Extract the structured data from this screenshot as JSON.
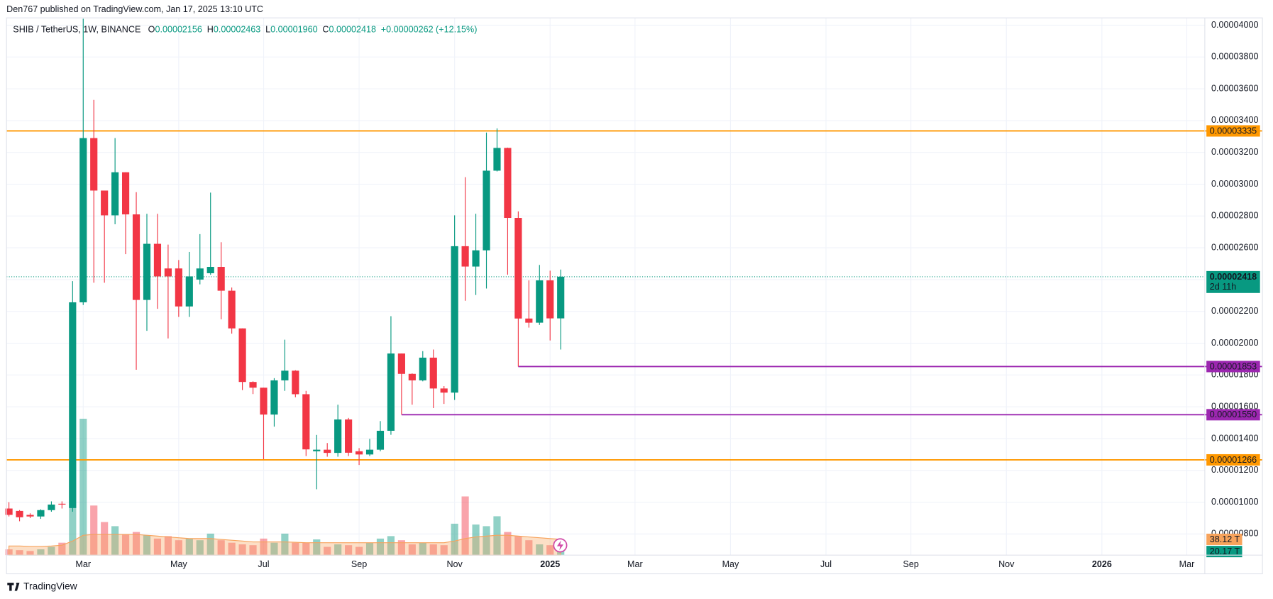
{
  "header": {
    "publisher": "Den767 published on TradingView.com, Jan 17, 2025 13:10 UTC",
    "brand": "TradingView"
  },
  "chart_data": {
    "type": "candlestick",
    "symbol": "SHIB / TetherUS, 1W, BINANCE",
    "legend": [
      {
        "key": "O",
        "value": "0.00002156"
      },
      {
        "key": "H",
        "value": "0.00002463"
      },
      {
        "key": "L",
        "value": "0.00001960"
      },
      {
        "key": "C",
        "value": "0.00002418"
      }
    ],
    "change": "+0.00000262 (+12.15%)",
    "up_color": "#089981",
    "down_color": "#f23645",
    "open": [
      9.6e-06,
      9.45e-06,
      9.2e-06,
      9.1e-06,
      9.5e-06,
      9.9e-06,
      9.63e-06,
      2.257e-05,
      3.29e-05,
      2.96e-05,
      2.804e-05,
      3.075e-05,
      2.81e-05,
      2.272e-05,
      2.625e-05,
      2.47e-05,
      2.47e-05,
      2.231e-05,
      2.4e-05,
      2.44e-05,
      2.48e-05,
      2.33e-05,
      2.093e-05,
      1.756e-05,
      1.72e-05,
      1.551e-05,
      1.766e-05,
      1.827e-05,
      1.679e-05,
      1.32e-05,
      1.33e-05,
      1.31e-05,
      1.52e-05,
      1.32e-05,
      1.3e-05,
      1.33e-05,
      1.449e-05,
      1.935e-05,
      1.807e-05,
      1.766e-05,
      1.909e-05,
      1.715e-05,
      1.689e-05,
      2.61e-05,
      2.482e-05,
      2.584e-05,
      3.085e-05,
      3.228e-05,
      2.788e-05,
      2.155e-05,
      2.129e-05,
      2.395e-05,
      2.156e-05
    ],
    "high": [
      1e-05,
      9.5e-06,
      9.3e-06,
      9.55e-06,
      1.005e-05,
      1.005e-05,
      2.39e-05,
      4.04e-05,
      3.53e-05,
      2.96e-05,
      3.29e-05,
      3.075e-05,
      2.95e-05,
      2.814e-05,
      2.814e-05,
      2.62e-05,
      2.523e-05,
      2.574e-05,
      2.686e-05,
      2.947e-05,
      2.635e-05,
      2.35e-05,
      2.093e-05,
      1.76e-05,
      1.72e-05,
      1.78e-05,
      2.022e-05,
      1.83e-05,
      1.7e-05,
      1.423e-05,
      1.372e-05,
      1.613e-05,
      1.53e-05,
      1.34e-05,
      1.398e-05,
      1.51e-05,
      2.17e-05,
      1.935e-05,
      1.81e-05,
      1.95e-05,
      1.96e-05,
      1.73e-05,
      2.804e-05,
      3.044e-05,
      2.814e-05,
      3.325e-05,
      3.351e-05,
      3.23e-05,
      2.829e-05,
      2.395e-05,
      2.492e-05,
      2.456e-05,
      2.463e-05
    ],
    "low": [
      9.1e-06,
      8.8e-06,
      9e-06,
      8.95e-06,
      9.4e-06,
      9.6e-06,
      9.4e-06,
      2.24e-05,
      2.38e-05,
      2.38e-05,
      2.748e-05,
      2.56e-05,
      1.833e-05,
      2.078e-05,
      2.216e-05,
      2.03e-05,
      2.165e-05,
      2.165e-05,
      2.37e-05,
      2.43e-05,
      2.15e-05,
      2.06e-05,
      1.705e-05,
      1.68e-05,
      1.27e-05,
      1.475e-05,
      1.7e-05,
      1.66e-05,
      1.29e-05,
      1.081e-05,
      1.286e-05,
      1.286e-05,
      1.29e-05,
      1.234e-05,
      1.29e-05,
      1.32e-05,
      1.424e-05,
      1.551e-05,
      1.613e-05,
      1.76e-05,
      1.592e-05,
      1.618e-05,
      1.643e-05,
      2.267e-05,
      2.303e-05,
      2.344e-05,
      3.08e-05,
      2.431e-05,
      1.853e-05,
      2.098e-05,
      2.115e-05,
      2.017e-05,
      1.96e-05
    ],
    "close": [
      9.2e-06,
      9.05e-06,
      9.1e-06,
      9.5e-06,
      9.85e-06,
      9.85e-06,
      2.257e-05,
      3.29e-05,
      2.96e-05,
      2.804e-05,
      3.075e-05,
      2.81e-05,
      2.272e-05,
      2.625e-05,
      2.42e-05,
      2.42e-05,
      2.231e-05,
      2.42e-05,
      2.47e-05,
      2.48e-05,
      2.33e-05,
      2.093e-05,
      1.756e-05,
      1.72e-05,
      1.551e-05,
      1.766e-05,
      1.827e-05,
      1.679e-05,
      1.332e-05,
      1.33e-05,
      1.31e-05,
      1.52e-05,
      1.311e-05,
      1.3e-05,
      1.33e-05,
      1.449e-05,
      1.935e-05,
      1.807e-05,
      1.766e-05,
      1.909e-05,
      1.715e-05,
      1.689e-05,
      2.61e-05,
      2.482e-05,
      2.584e-05,
      3.085e-05,
      3.228e-05,
      2.788e-05,
      2.155e-05,
      2.129e-05,
      2.395e-05,
      2.156e-05,
      2.418e-05
    ],
    "volume": {
      "values": [
        14,
        12,
        10,
        14,
        20,
        30,
        226,
        330,
        120,
        80,
        70,
        50,
        56,
        48,
        40,
        46,
        36,
        40,
        36,
        52,
        36,
        30,
        26,
        24,
        40,
        30,
        52,
        30,
        30,
        38,
        20,
        26,
        24,
        20,
        30,
        40,
        46,
        36,
        26,
        30,
        26,
        24,
        76,
        142,
        74,
        70,
        94,
        56,
        46,
        36,
        26,
        24,
        20.17
      ],
      "last_label": "20.17 T"
    },
    "volume_ma": {
      "values": [
        22,
        22,
        21,
        21,
        22,
        24,
        34,
        48,
        50,
        50,
        50,
        50,
        50,
        48,
        46,
        44,
        42,
        40,
        40,
        40,
        38,
        36,
        34,
        32,
        32,
        32,
        32,
        31,
        30,
        30,
        30,
        30,
        30,
        30,
        30,
        30,
        30,
        30,
        30,
        30,
        30,
        30,
        34,
        40,
        44,
        46,
        48,
        48,
        46,
        44,
        42,
        40,
        38.12
      ],
      "color": "#f7a35c",
      "last_label": "38.12 T"
    },
    "y2lim": [
      0,
      1300
    ],
    "last_price": {
      "label": "0.00002418",
      "countdown": "2d 11h"
    },
    "levels": [
      {
        "value": 3.335e-05,
        "label": "0.00003335",
        "color": "#ff9800",
        "text_color": "#131722"
      },
      {
        "value": 1.853e-05,
        "label": "0.00001853",
        "color": "#9c27b0",
        "text_color": "#ffffff",
        "start": 48
      },
      {
        "value": 1.55e-05,
        "label": "0.00001550",
        "color": "#9c27b0",
        "text_color": "#ffffff",
        "start": 37
      },
      {
        "value": 1.266e-05,
        "label": "0.00001266",
        "color": "#ff9800",
        "text_color": "#131722"
      }
    ],
    "xlim": [
      -0.23,
      112.7
    ],
    "xticks": [
      {
        "value": 7,
        "label": "Mar"
      },
      {
        "value": 16,
        "label": "May"
      },
      {
        "value": 24,
        "label": "Jul"
      },
      {
        "value": 33,
        "label": "Sep"
      },
      {
        "value": 42,
        "label": "Nov"
      },
      {
        "value": 51,
        "label": "2025"
      },
      {
        "value": 59,
        "label": "Mar"
      },
      {
        "value": 68,
        "label": "May"
      },
      {
        "value": 77,
        "label": "Jul"
      },
      {
        "value": 85,
        "label": "Sep"
      },
      {
        "value": 94,
        "label": "Nov"
      },
      {
        "value": 103,
        "label": "2026"
      },
      {
        "value": 111,
        "label": "Mar"
      }
    ],
    "ylim": [
      6.67e-06,
      4.046e-05
    ],
    "yticks": [
      {
        "value": 8e-06,
        "label": "0.00000800"
      },
      {
        "value": 1e-05,
        "label": "0.00001000"
      },
      {
        "value": 1.2e-05,
        "label": "0.00001200"
      },
      {
        "value": 1.4e-05,
        "label": "0.00001400"
      },
      {
        "value": 1.6e-05,
        "label": "0.00001600"
      },
      {
        "value": 1.8e-05,
        "label": "0.00001800"
      },
      {
        "value": 2e-05,
        "label": "0.00002000"
      },
      {
        "value": 2.2e-05,
        "label": "0.00002200"
      },
      {
        "value": 2.4e-05,
        "label": "0.00002400"
      },
      {
        "value": 2.6e-05,
        "label": "0.00002600"
      },
      {
        "value": 2.8e-05,
        "label": "0.00002800"
      },
      {
        "value": 3e-05,
        "label": "0.00003000"
      },
      {
        "value": 3.2e-05,
        "label": "0.00003200"
      },
      {
        "value": 3.4e-05,
        "label": "0.00003400"
      },
      {
        "value": 3.6e-05,
        "label": "0.00003600"
      },
      {
        "value": 3.8e-05,
        "label": "0.00003800"
      },
      {
        "value": 4e-05,
        "label": "0.00004000"
      }
    ],
    "grid": true
  }
}
